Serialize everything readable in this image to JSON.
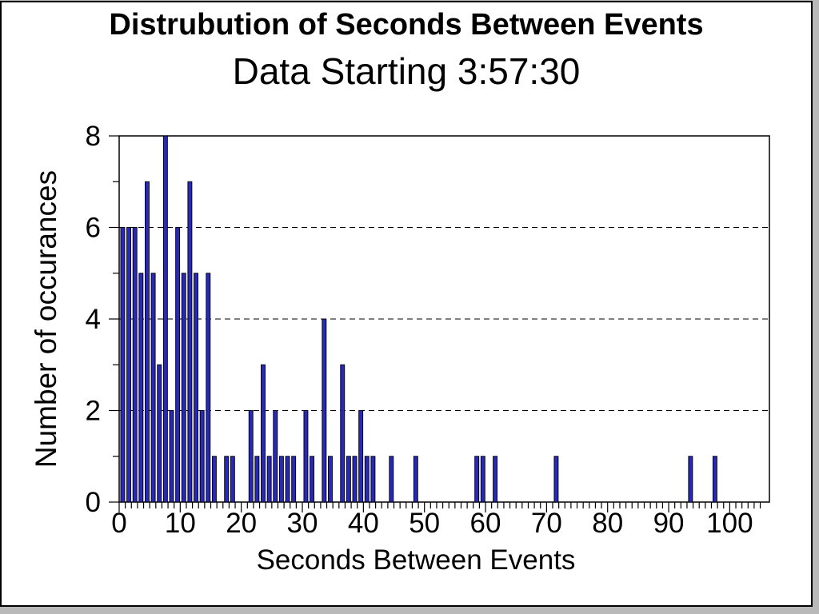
{
  "figure": {
    "background": "#ffffff",
    "outer_background": "#b9b9b9",
    "border_color": "#000000"
  },
  "chart_data": {
    "type": "bar",
    "title": "Distrubution of Seconds Between Events",
    "subtitle": "Data Starting 3:57:30",
    "xlabel": "Seconds Between Events",
    "ylabel": "Number of occurances",
    "xlim": [
      0,
      106.5
    ],
    "ylim": [
      0,
      8
    ],
    "x_major_ticks": [
      0,
      10,
      20,
      30,
      40,
      50,
      60,
      70,
      80,
      90,
      100
    ],
    "x_minor_tick_step": 1,
    "x_max_minor_tick": 105,
    "y_major_ticks": [
      0,
      2,
      4,
      6,
      8
    ],
    "y_minor_ticks": [
      1,
      3,
      5,
      7
    ],
    "gridline_values": [
      2,
      4,
      6
    ],
    "grid_style": "dashed",
    "legend": "none",
    "bar_color": "#2828b9",
    "bar_edge_color": "#000000",
    "bin_width_seconds": 1,
    "points": [
      {
        "seconds": 0,
        "count": 6
      },
      {
        "seconds": 1,
        "count": 6
      },
      {
        "seconds": 2,
        "count": 6
      },
      {
        "seconds": 3,
        "count": 5
      },
      {
        "seconds": 4,
        "count": 7
      },
      {
        "seconds": 5,
        "count": 5
      },
      {
        "seconds": 6,
        "count": 3
      },
      {
        "seconds": 7,
        "count": 8
      },
      {
        "seconds": 8,
        "count": 2
      },
      {
        "seconds": 9,
        "count": 6
      },
      {
        "seconds": 10,
        "count": 5
      },
      {
        "seconds": 11,
        "count": 7
      },
      {
        "seconds": 12,
        "count": 5
      },
      {
        "seconds": 13,
        "count": 2
      },
      {
        "seconds": 14,
        "count": 5
      },
      {
        "seconds": 15,
        "count": 1
      },
      {
        "seconds": 17,
        "count": 1
      },
      {
        "seconds": 18,
        "count": 1
      },
      {
        "seconds": 21,
        "count": 2
      },
      {
        "seconds": 22,
        "count": 1
      },
      {
        "seconds": 23,
        "count": 3
      },
      {
        "seconds": 24,
        "count": 1
      },
      {
        "seconds": 25,
        "count": 2
      },
      {
        "seconds": 26,
        "count": 1
      },
      {
        "seconds": 27,
        "count": 1
      },
      {
        "seconds": 28,
        "count": 1
      },
      {
        "seconds": 30,
        "count": 2
      },
      {
        "seconds": 31,
        "count": 1
      },
      {
        "seconds": 33,
        "count": 4
      },
      {
        "seconds": 34,
        "count": 1
      },
      {
        "seconds": 36,
        "count": 3
      },
      {
        "seconds": 37,
        "count": 1
      },
      {
        "seconds": 38,
        "count": 1
      },
      {
        "seconds": 39,
        "count": 2
      },
      {
        "seconds": 40,
        "count": 1
      },
      {
        "seconds": 41,
        "count": 1
      },
      {
        "seconds": 44,
        "count": 1
      },
      {
        "seconds": 48,
        "count": 1
      },
      {
        "seconds": 58,
        "count": 1
      },
      {
        "seconds": 59,
        "count": 1
      },
      {
        "seconds": 61,
        "count": 1
      },
      {
        "seconds": 71,
        "count": 1
      },
      {
        "seconds": 93,
        "count": 1
      },
      {
        "seconds": 97,
        "count": 1
      }
    ]
  }
}
